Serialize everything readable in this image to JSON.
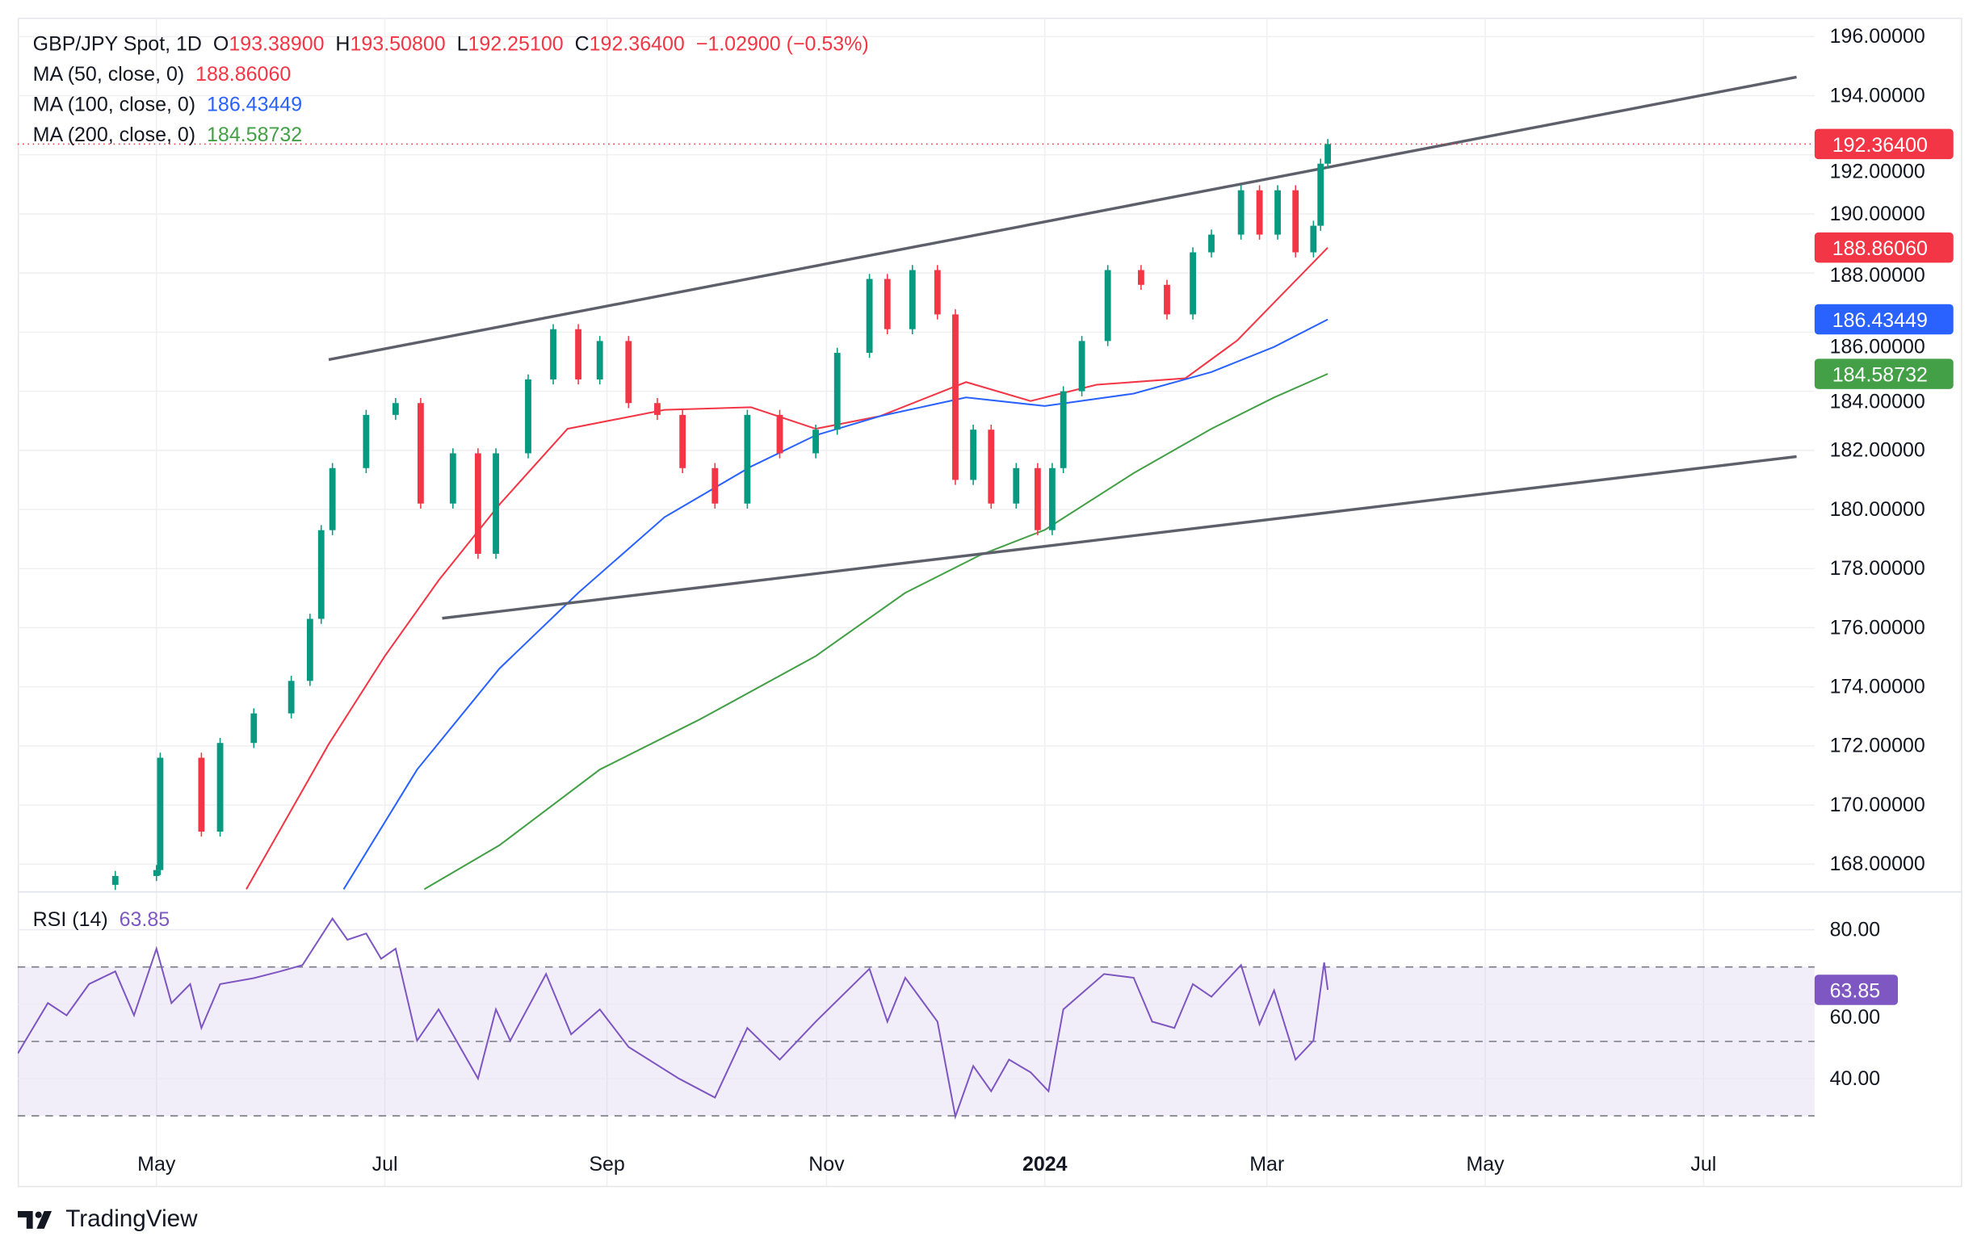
{
  "header": {
    "symbol": "GBP/JPY Spot, 1D",
    "o_label": "O",
    "open": "193.38900",
    "h_label": "H",
    "high": "193.50800",
    "l_label": "L",
    "low": "192.25100",
    "c_label": "C",
    "close": "192.36400",
    "change": "−1.02900 (−0.53%)"
  },
  "indicators": [
    {
      "label": "MA (50, close, 0)",
      "value": "188.86060",
      "color": "#f23645"
    },
    {
      "label": "MA (100, close, 0)",
      "value": "186.43449",
      "color": "#2962ff"
    },
    {
      "label": "MA (200, close, 0)",
      "value": "184.58732",
      "color": "#43a047"
    }
  ],
  "rsi": {
    "label": "RSI (14)",
    "value": "63.85",
    "color": "#7e57c2"
  },
  "price_tags": [
    {
      "value": "192.36400",
      "price": 192.364,
      "color": "#f23645"
    },
    {
      "value": "188.86060",
      "price": 188.8606,
      "color": "#f23645"
    },
    {
      "value": "186.43449",
      "price": 186.43449,
      "color": "#2962ff"
    },
    {
      "value": "184.58732",
      "price": 184.58732,
      "color": "#43a047"
    }
  ],
  "rsi_tag": {
    "value": "63.85",
    "level": 63.85,
    "color": "#7e57c2"
  },
  "branding": "TradingView",
  "chart_data": {
    "type": "candlestick",
    "title": "GBP/JPY Spot, 1D",
    "y_ticks": [
      "196.00000",
      "194.00000",
      "192.00000",
      "190.00000",
      "188.00000",
      "186.00000",
      "184.00000",
      "182.00000",
      "180.00000",
      "178.00000",
      "176.00000",
      "174.00000",
      "172.00000",
      "170.00000",
      "168.00000"
    ],
    "ylim": [
      167.3,
      196.6
    ],
    "x_ticks": [
      {
        "label": "May",
        "date": "2023-05-01",
        "bold": false
      },
      {
        "label": "Jul",
        "date": "2023-07-01",
        "bold": false
      },
      {
        "label": "Sep",
        "date": "2023-09-01",
        "bold": false
      },
      {
        "label": "Nov",
        "date": "2023-11-01",
        "bold": false
      },
      {
        "label": "2024",
        "date": "2024-01-01",
        "bold": true
      },
      {
        "label": "Mar",
        "date": "2024-03-01",
        "bold": false
      },
      {
        "label": "May",
        "date": "2024-05-01",
        "bold": false
      },
      {
        "label": "Jul",
        "date": "2024-07-01",
        "bold": false
      }
    ],
    "closes": [
      [
        "2023-04-20",
        167.6
      ],
      [
        "2023-05-01",
        167.8
      ],
      [
        "2023-05-02",
        171.6
      ],
      [
        "2023-05-13",
        169.1
      ],
      [
        "2023-05-18",
        172.1
      ],
      [
        "2023-05-27",
        173.1
      ],
      [
        "2023-06-06",
        174.2
      ],
      [
        "2023-06-11",
        176.3
      ],
      [
        "2023-06-14",
        179.3
      ],
      [
        "2023-06-17",
        181.4
      ],
      [
        "2023-06-26",
        183.2
      ],
      [
        "2023-07-04",
        183.6
      ],
      [
        "2023-07-11",
        180.2
      ],
      [
        "2023-07-20",
        181.9
      ],
      [
        "2023-07-27",
        178.5
      ],
      [
        "2023-08-01",
        181.9
      ],
      [
        "2023-08-10",
        184.4
      ],
      [
        "2023-08-17",
        186.1
      ],
      [
        "2023-08-24",
        184.4
      ],
      [
        "2023-08-30",
        185.7
      ],
      [
        "2023-09-07",
        183.6
      ],
      [
        "2023-09-15",
        183.2
      ],
      [
        "2023-09-22",
        181.4
      ],
      [
        "2023-10-01",
        180.2
      ],
      [
        "2023-10-10",
        183.2
      ],
      [
        "2023-10-19",
        181.9
      ],
      [
        "2023-10-29",
        182.7
      ],
      [
        "2023-11-04",
        185.3
      ],
      [
        "2023-11-13",
        187.8
      ],
      [
        "2023-11-18",
        186.1
      ],
      [
        "2023-11-25",
        188.1
      ],
      [
        "2023-12-02",
        186.6
      ],
      [
        "2023-12-07",
        181.0
      ],
      [
        "2023-12-12",
        182.7
      ],
      [
        "2023-12-17",
        180.2
      ],
      [
        "2023-12-24",
        181.4
      ],
      [
        "2023-12-30",
        179.3
      ],
      [
        "2024-01-03",
        181.4
      ],
      [
        "2024-01-06",
        184.0
      ],
      [
        "2024-01-11",
        185.7
      ],
      [
        "2024-01-18",
        188.1
      ],
      [
        "2024-01-27",
        187.6
      ],
      [
        "2024-02-03",
        186.6
      ],
      [
        "2024-02-10",
        188.7
      ],
      [
        "2024-02-15",
        189.3
      ],
      [
        "2024-02-23",
        190.8
      ],
      [
        "2024-02-28",
        189.3
      ],
      [
        "2024-03-04",
        190.8
      ],
      [
        "2024-03-09",
        188.7
      ],
      [
        "2024-03-14",
        189.6
      ],
      [
        "2024-03-16",
        191.7
      ],
      [
        "2024-03-18",
        192.364
      ]
    ],
    "moving_averages": [
      {
        "name": "MA 50",
        "color": "#f23645",
        "points": [
          [
            "2023-05-25",
            167.15
          ],
          [
            "2023-06-16",
            172.06
          ],
          [
            "2023-07-01",
            175.04
          ],
          [
            "2023-07-16",
            177.6
          ],
          [
            "2023-08-02",
            180.17
          ],
          [
            "2023-08-21",
            182.73
          ],
          [
            "2023-09-17",
            183.37
          ],
          [
            "2023-10-11",
            183.46
          ],
          [
            "2023-10-29",
            182.73
          ],
          [
            "2023-11-16",
            183.16
          ],
          [
            "2023-12-10",
            184.31
          ],
          [
            "2023-12-28",
            183.67
          ],
          [
            "2024-01-15",
            184.22
          ],
          [
            "2024-02-08",
            184.44
          ],
          [
            "2024-02-22",
            185.72
          ],
          [
            "2024-03-03",
            187.0
          ],
          [
            "2024-03-18",
            188.86
          ]
        ]
      },
      {
        "name": "MA 100",
        "color": "#2962ff",
        "points": [
          [
            "2023-06-20",
            167.15
          ],
          [
            "2023-07-10",
            171.2
          ],
          [
            "2023-08-02",
            174.62
          ],
          [
            "2023-08-24",
            177.18
          ],
          [
            "2023-09-17",
            179.74
          ],
          [
            "2023-10-11",
            181.45
          ],
          [
            "2023-10-29",
            182.51
          ],
          [
            "2023-11-16",
            183.16
          ],
          [
            "2023-12-10",
            183.79
          ],
          [
            "2024-01-01",
            183.5
          ],
          [
            "2024-01-25",
            183.92
          ],
          [
            "2024-02-15",
            184.65
          ],
          [
            "2024-03-03",
            185.5
          ],
          [
            "2024-03-18",
            186.43
          ]
        ]
      },
      {
        "name": "MA 200",
        "color": "#43a047",
        "points": [
          [
            "2023-07-12",
            167.15
          ],
          [
            "2023-08-02",
            168.64
          ],
          [
            "2023-08-30",
            171.2
          ],
          [
            "2023-09-27",
            172.91
          ],
          [
            "2023-10-29",
            175.04
          ],
          [
            "2023-11-23",
            177.18
          ],
          [
            "2023-12-14",
            178.46
          ],
          [
            "2024-01-01",
            179.31
          ],
          [
            "2024-01-25",
            181.23
          ],
          [
            "2024-02-15",
            182.73
          ],
          [
            "2024-03-03",
            183.79
          ],
          [
            "2024-03-18",
            184.59
          ]
        ]
      }
    ],
    "trendlines": [
      {
        "name": "upper-channel",
        "from": [
          "2023-06-16",
          185.07
        ],
        "to": [
          "2024-07-27",
          194.63
        ]
      },
      {
        "name": "lower-channel",
        "from": [
          "2023-07-17",
          176.32
        ],
        "to": [
          "2024-07-27",
          181.79
        ]
      }
    ],
    "rsi_panel": {
      "y_ticks": [
        "80.00",
        "60.00",
        "40.00"
      ],
      "levels": [
        70,
        50,
        30
      ],
      "ylim": [
        28,
        90
      ],
      "points": [
        [
          "2023-03-25",
          46.8
        ],
        [
          "2023-03-28",
          51.9
        ],
        [
          "2023-04-02",
          60.3
        ],
        [
          "2023-04-07",
          57
        ],
        [
          "2023-04-13",
          65.4
        ],
        [
          "2023-04-20",
          68.8
        ],
        [
          "2023-04-25",
          57
        ],
        [
          "2023-05-01",
          74.9
        ],
        [
          "2023-05-05",
          60.3
        ],
        [
          "2023-05-10",
          65.4
        ],
        [
          "2023-05-13",
          53.6
        ],
        [
          "2023-05-18",
          65.4
        ],
        [
          "2023-05-27",
          67
        ],
        [
          "2023-06-03",
          68.8
        ],
        [
          "2023-06-09",
          70.5
        ],
        [
          "2023-06-17",
          83
        ],
        [
          "2023-06-21",
          77.3
        ],
        [
          "2023-06-26",
          79
        ],
        [
          "2023-06-30",
          72.2
        ],
        [
          "2023-07-04",
          74.9
        ],
        [
          "2023-07-10",
          50.2
        ],
        [
          "2023-07-16",
          58.6
        ],
        [
          "2023-07-27",
          40
        ],
        [
          "2023-08-01",
          58.6
        ],
        [
          "2023-08-05",
          50.2
        ],
        [
          "2023-08-15",
          68.1
        ],
        [
          "2023-08-22",
          51.9
        ],
        [
          "2023-08-30",
          58.6
        ],
        [
          "2023-09-07",
          48.5
        ],
        [
          "2023-09-21",
          40
        ],
        [
          "2023-10-01",
          34.9
        ],
        [
          "2023-10-10",
          53.6
        ],
        [
          "2023-10-19",
          45.1
        ],
        [
          "2023-10-29",
          55.3
        ],
        [
          "2023-11-13",
          69.5
        ],
        [
          "2023-11-18",
          55.3
        ],
        [
          "2023-11-23",
          67.1
        ],
        [
          "2023-12-02",
          55.3
        ],
        [
          "2023-12-07",
          29.8
        ],
        [
          "2023-12-12",
          43.4
        ],
        [
          "2023-12-17",
          36.6
        ],
        [
          "2023-12-22",
          45.1
        ],
        [
          "2023-12-28",
          41.7
        ],
        [
          "2024-01-02",
          36.6
        ],
        [
          "2024-01-06",
          58.6
        ],
        [
          "2024-01-17",
          68.1
        ],
        [
          "2024-01-25",
          67.1
        ],
        [
          "2024-01-30",
          55.3
        ],
        [
          "2024-02-05",
          53.6
        ],
        [
          "2024-02-10",
          65.4
        ],
        [
          "2024-02-15",
          62
        ],
        [
          "2024-02-23",
          70.5
        ],
        [
          "2024-02-28",
          54.6
        ],
        [
          "2024-03-03",
          63.7
        ],
        [
          "2024-03-09",
          45.1
        ],
        [
          "2024-03-14",
          50.2
        ],
        [
          "2024-03-17",
          71.2
        ],
        [
          "2024-03-18",
          63.85
        ]
      ]
    }
  }
}
